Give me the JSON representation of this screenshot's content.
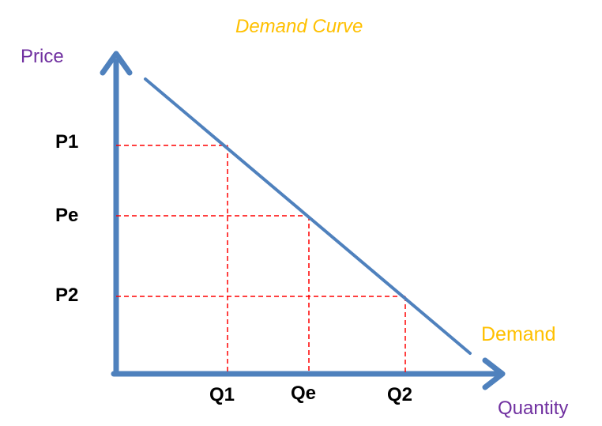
{
  "title": "Demand Curve",
  "axes": {
    "y_label": "Price",
    "x_label": "Quantity"
  },
  "curve_label": "Demand",
  "price_levels": [
    {
      "label": "P1",
      "quantity_label": "Q1"
    },
    {
      "label": "Pe",
      "quantity_label": "Qe"
    },
    {
      "label": "P2",
      "quantity_label": "Q2"
    }
  ],
  "colors": {
    "axis": "#4F81BD",
    "curve": "#4F81BD",
    "guide": "#FF0000",
    "title": "#FFC000",
    "curve_label": "#FFC000",
    "axis_labels": "#7030A0",
    "ticks": "#000000"
  }
}
